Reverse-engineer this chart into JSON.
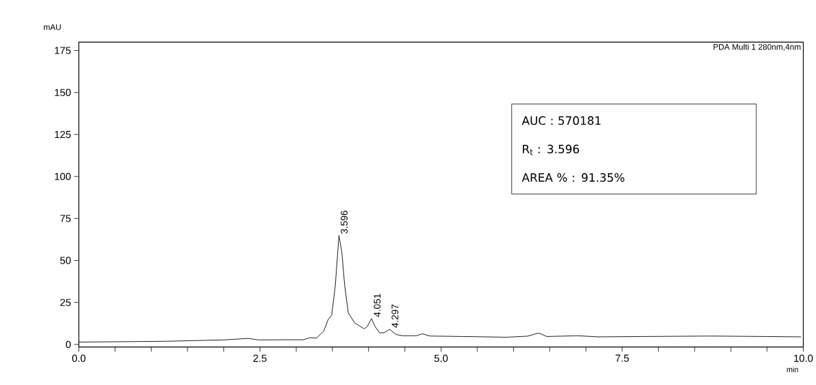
{
  "chart_data": {
    "type": "line",
    "xlabel": "min",
    "ylabel": "mAU",
    "color": "#000000",
    "x": [
      0.0,
      1.22,
      2.0,
      2.34,
      2.48,
      2.85,
      3.1,
      3.19,
      3.28,
      3.38,
      3.44,
      3.49,
      3.54,
      3.59,
      3.63,
      3.67,
      3.72,
      3.81,
      3.94,
      3.98,
      4.04,
      4.09,
      4.15,
      4.21,
      4.29,
      4.38,
      4.47,
      4.66,
      4.74,
      4.85,
      5.29,
      5.91,
      6.19,
      6.35,
      6.46,
      6.88,
      7.16,
      8.72,
      9.97
    ],
    "values": [
      1.4,
      1.9,
      2.7,
      3.6,
      2.7,
      2.8,
      2.8,
      4.0,
      3.8,
      7.9,
      14.7,
      17.4,
      34.9,
      64.9,
      55,
      34.9,
      18.7,
      12.7,
      9.3,
      10.6,
      15.4,
      10.6,
      7.0,
      6.9,
      9.0,
      5.9,
      5.2,
      5.2,
      6.3,
      5.0,
      4.7,
      4.3,
      4.9,
      6.8,
      4.7,
      5.2,
      4.5,
      5.0,
      4.5
    ],
    "xlim": [
      0,
      10
    ],
    "ylim": [
      -1.5,
      180
    ],
    "xticks": [
      {
        "value": 0,
        "label": "0.0"
      },
      {
        "value": 0.5,
        "label": null
      },
      {
        "value": 1,
        "label": null
      },
      {
        "value": 1.5,
        "label": null
      },
      {
        "value": 2,
        "label": null
      },
      {
        "value": 2.5,
        "label": "2.5"
      },
      {
        "value": 3,
        "label": null
      },
      {
        "value": 3.5,
        "label": null
      },
      {
        "value": 4,
        "label": null
      },
      {
        "value": 4.5,
        "label": null
      },
      {
        "value": 5,
        "label": "5.0"
      },
      {
        "value": 5.5,
        "label": null
      },
      {
        "value": 6,
        "label": null
      },
      {
        "value": 6.5,
        "label": null
      },
      {
        "value": 7,
        "label": null
      },
      {
        "value": 7.5,
        "label": "7.5"
      },
      {
        "value": 8,
        "label": null
      },
      {
        "value": 8.5,
        "label": null
      },
      {
        "value": 9,
        "label": null
      },
      {
        "value": 9.5,
        "label": null
      },
      {
        "value": 10,
        "label": "10.0"
      }
    ],
    "yticks": [
      0,
      25,
      50,
      75,
      100,
      125,
      150,
      175
    ],
    "annotations": [
      "PDA Multi 1 280nm,4nm",
      "AUC       : 570181",
      "R$_{t}$           : 3.596",
      "AREA % : 91.35%",
      {
        "text": "3.596",
        "x": 3.596,
        "y": 64.9
      },
      {
        "text": "4.051",
        "x": 4.051,
        "y": 15.4
      },
      {
        "text": "4.297",
        "x": 4.297,
        "y": 9.0
      }
    ]
  }
}
